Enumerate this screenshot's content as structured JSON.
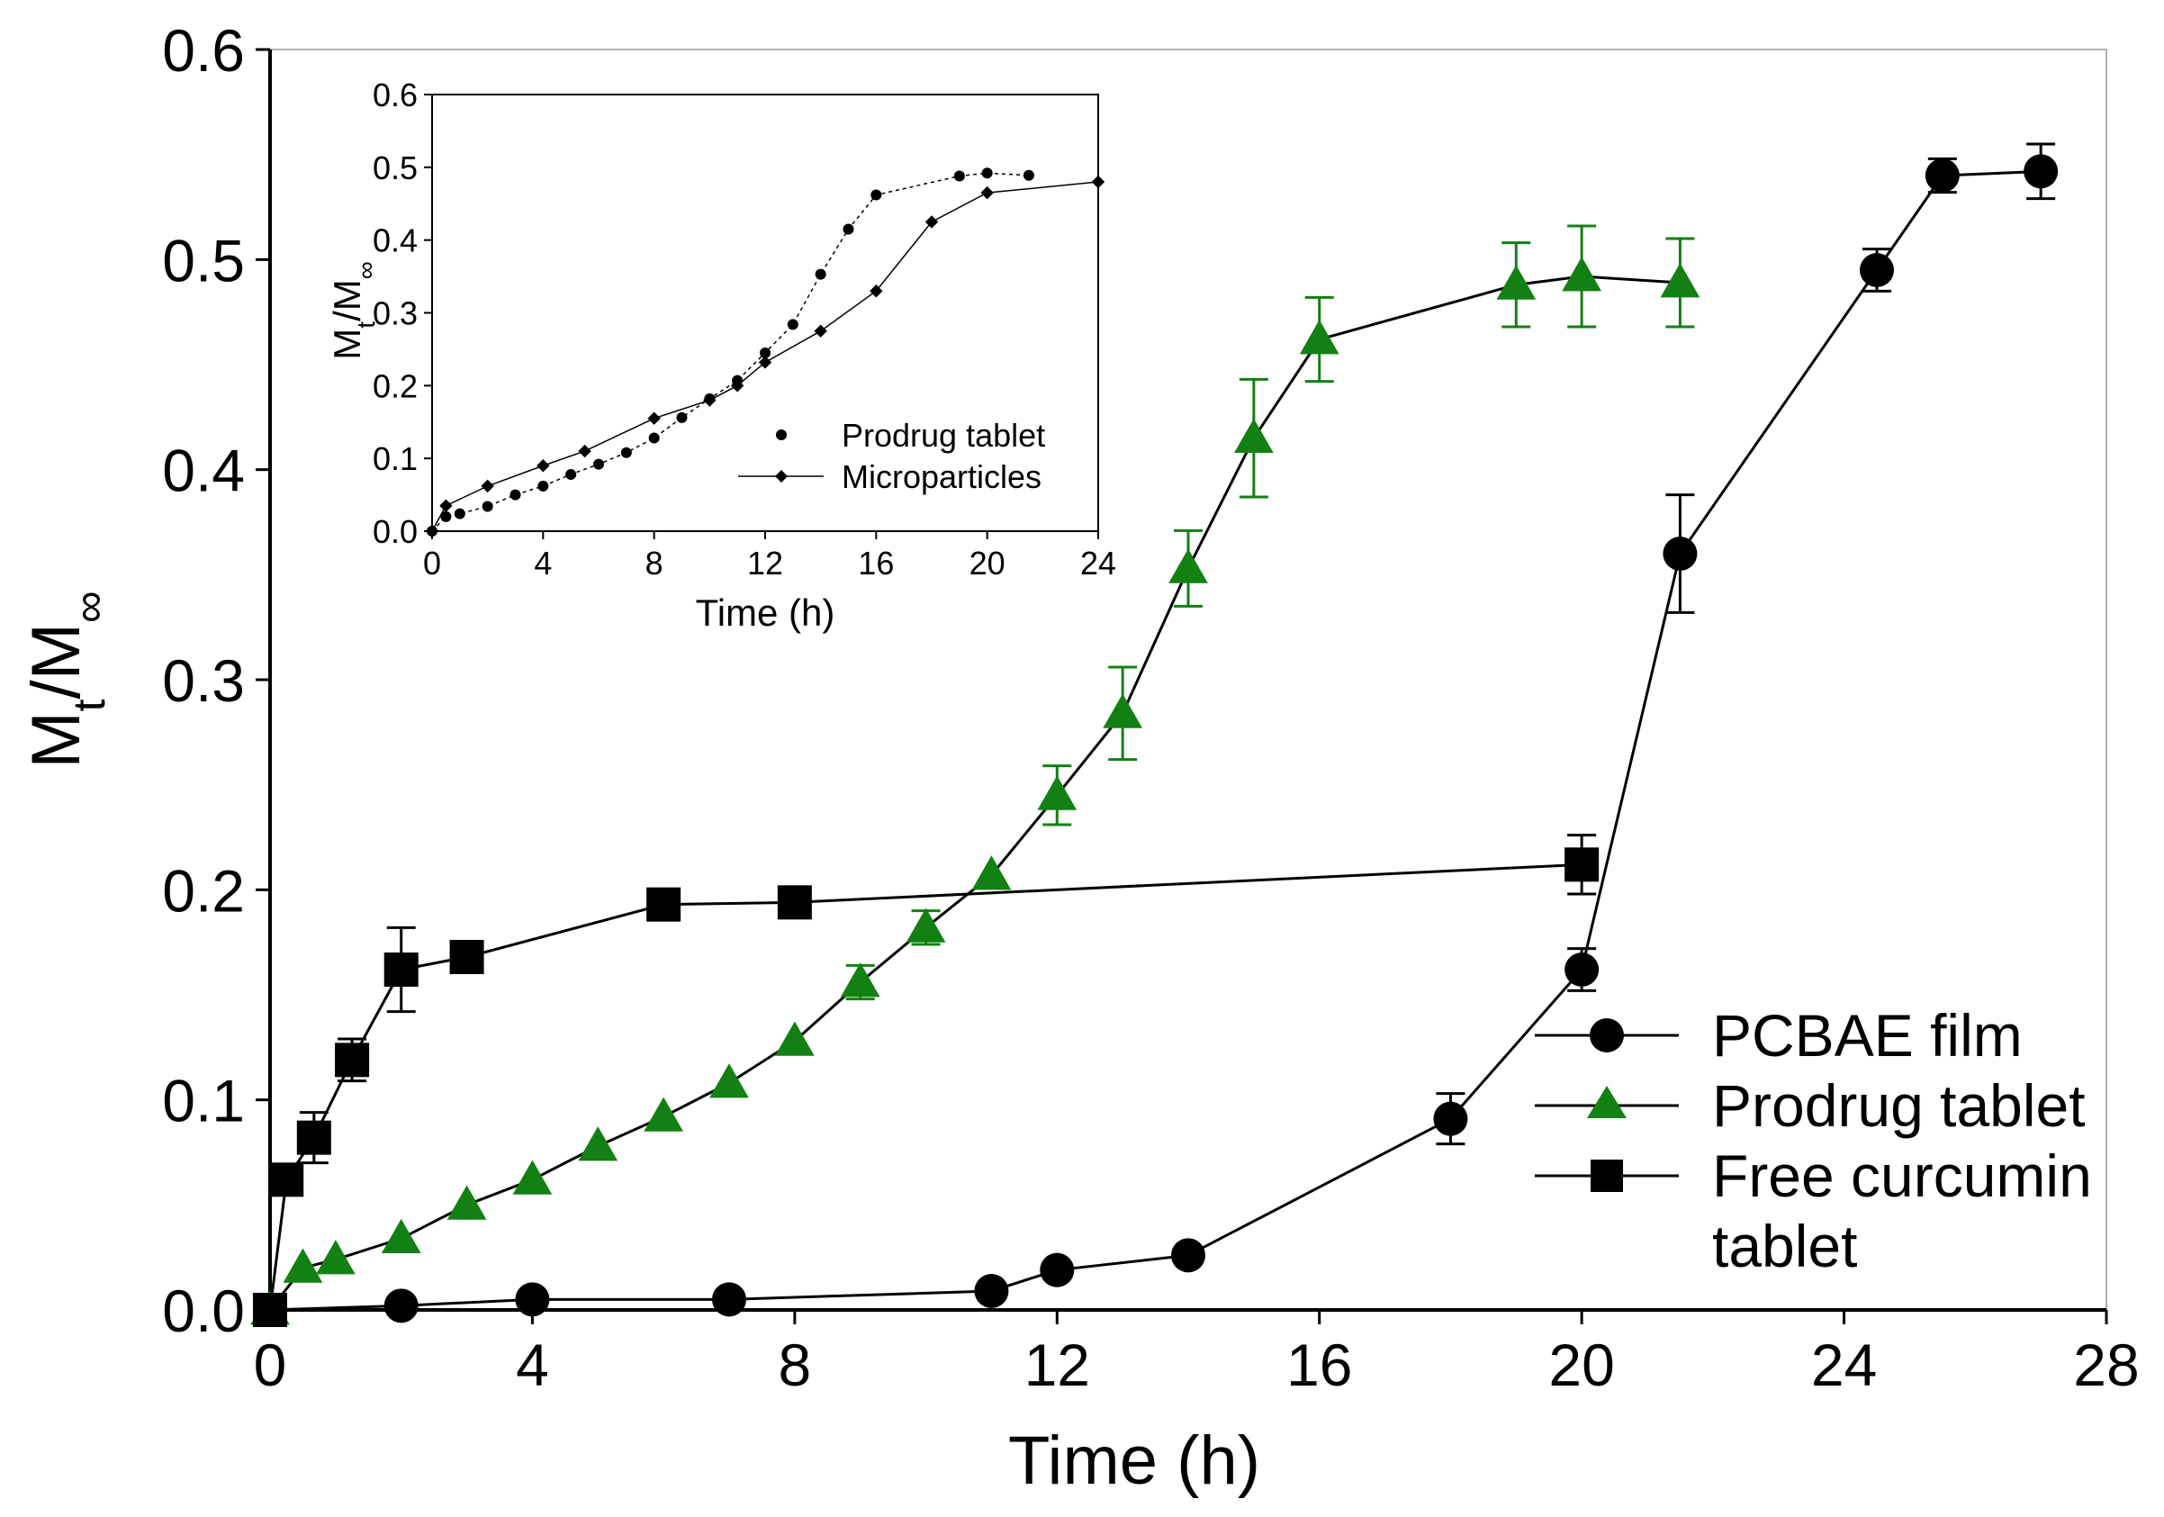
{
  "chart_data": [
    {
      "type": "line",
      "title": "",
      "xlabel": "Time (h)",
      "ylabel_main": "M",
      "ylabel_sub1": "t",
      "ylabel_sep": "/M",
      "ylabel_sub2": "∞",
      "xlim": [
        0,
        28
      ],
      "ylim": [
        0,
        0.6
      ],
      "xticks": [
        "0",
        "4",
        "8",
        "12",
        "16",
        "20",
        "24",
        "28"
      ],
      "yticks": [
        "0.0",
        "0.1",
        "0.2",
        "0.3",
        "0.4",
        "0.5",
        "0.6"
      ],
      "legend_position": "bottom-right",
      "series": [
        {
          "name": "PCBAE film",
          "marker": "circle",
          "color": "#000000",
          "x": [
            0,
            2,
            4,
            7,
            11,
            12,
            14,
            18,
            20,
            21.5,
            24.5,
            25.5,
            27
          ],
          "y": [
            0.0,
            0.002,
            0.005,
            0.005,
            0.009,
            0.019,
            0.026,
            0.091,
            0.162,
            0.36,
            0.495,
            0.54,
            0.542
          ],
          "err": [
            0,
            0,
            0,
            0,
            0,
            0,
            0,
            0.012,
            0.01,
            0.028,
            0.01,
            0.008,
            0.013
          ]
        },
        {
          "name": "Prodrug tablet",
          "marker": "triangle",
          "color": "#138013",
          "x": [
            0,
            0.5,
            1,
            2,
            3,
            4,
            5,
            6,
            7,
            8,
            9,
            10,
            11,
            12,
            13,
            14,
            15,
            16,
            19,
            20,
            21.5
          ],
          "y": [
            0.0,
            0.02,
            0.024,
            0.034,
            0.05,
            0.062,
            0.078,
            0.092,
            0.108,
            0.128,
            0.156,
            0.182,
            0.207,
            0.245,
            0.284,
            0.353,
            0.415,
            0.462,
            0.488,
            0.492,
            0.489
          ],
          "err": [
            0,
            0,
            0,
            0,
            0,
            0,
            0,
            0,
            0,
            0,
            0.008,
            0.008,
            0,
            0.014,
            0.022,
            0.018,
            0.028,
            0.02,
            0.02,
            0.024,
            0.021
          ]
        },
        {
          "name": "Free curcumin tablet",
          "marker": "square",
          "color": "#000000",
          "x": [
            0,
            0.25,
            0.67,
            1.25,
            2,
            3,
            6,
            8,
            20
          ],
          "y": [
            0.0,
            0.062,
            0.082,
            0.119,
            0.162,
            0.168,
            0.193,
            0.194,
            0.212
          ],
          "err": [
            0,
            0.006,
            0.012,
            0.01,
            0.02,
            0,
            0,
            0,
            0.014
          ]
        }
      ],
      "legend_labels": [
        "PCBAE film",
        "Prodrug tablet",
        "Free curcumin",
        "tablet"
      ]
    },
    {
      "type": "line",
      "inset": true,
      "title": "",
      "xlabel": "Time (h)",
      "ylabel_main": "M",
      "ylabel_sub1": "t",
      "ylabel_sep": "/M",
      "ylabel_sub2": "∞",
      "xlim": [
        0,
        24
      ],
      "ylim": [
        0,
        0.6
      ],
      "xticks": [
        "0",
        "4",
        "8",
        "12",
        "16",
        "20",
        "24"
      ],
      "yticks": [
        "0.0",
        "0.1",
        "0.2",
        "0.3",
        "0.4",
        "0.5",
        "0.6"
      ],
      "legend_position": "bottom-right",
      "series": [
        {
          "name": "Prodrug tablet",
          "marker": "circle",
          "x": [
            0,
            0.5,
            1,
            2,
            3,
            4,
            5,
            6,
            7,
            8,
            9,
            10,
            11,
            12,
            13,
            14,
            15,
            16,
            19,
            20,
            21.5
          ],
          "y": [
            0.0,
            0.02,
            0.024,
            0.034,
            0.05,
            0.062,
            0.078,
            0.092,
            0.108,
            0.128,
            0.156,
            0.182,
            0.207,
            0.245,
            0.284,
            0.353,
            0.415,
            0.462,
            0.488,
            0.492,
            0.489
          ]
        },
        {
          "name": "Microparticles",
          "marker": "diamond",
          "x": [
            0,
            0.5,
            2,
            4,
            5.5,
            8,
            10,
            11,
            12,
            14,
            16,
            18,
            20,
            24
          ],
          "y": [
            0.0,
            0.035,
            0.062,
            0.09,
            0.11,
            0.155,
            0.18,
            0.2,
            0.232,
            0.275,
            0.33,
            0.425,
            0.465,
            0.48
          ]
        }
      ],
      "legend_labels": [
        "Prodrug tablet",
        "Microparticles"
      ]
    }
  ]
}
